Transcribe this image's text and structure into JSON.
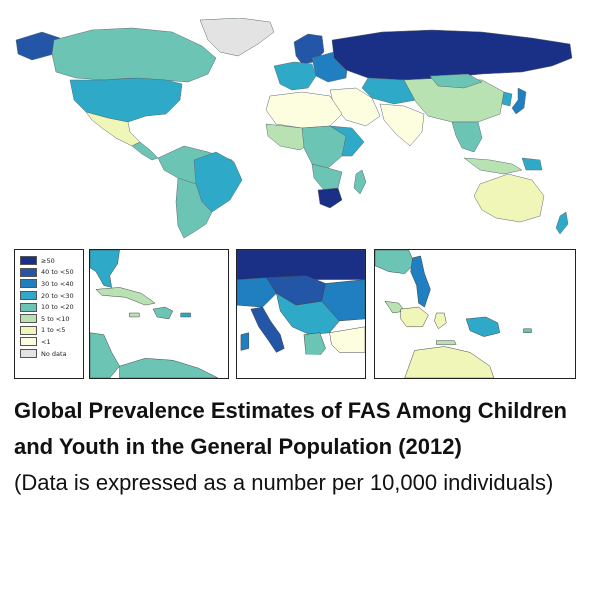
{
  "map": {
    "legend": [
      {
        "label": "≥50",
        "color": "#1a2f86"
      },
      {
        "label": "40 to <50",
        "color": "#2356a6"
      },
      {
        "label": "30 to <40",
        "color": "#1f7fc0"
      },
      {
        "label": "20 to <30",
        "color": "#2fa9c8"
      },
      {
        "label": "10 to <20",
        "color": "#6cc5b4"
      },
      {
        "label": "5 to <10",
        "color": "#b8e2b2"
      },
      {
        "label": "1 to <5",
        "color": "#f0f6b8"
      },
      {
        "label": "<1",
        "color": "#fdfde0"
      },
      {
        "label": "No data",
        "color": "#e3e3e3"
      }
    ]
  },
  "caption": {
    "title": "Global Prevalence Estimates of FAS Among Children and Youth in the General Population (2012)",
    "subtitle": "(Data is expressed as a number per 10,000 individuals)"
  }
}
